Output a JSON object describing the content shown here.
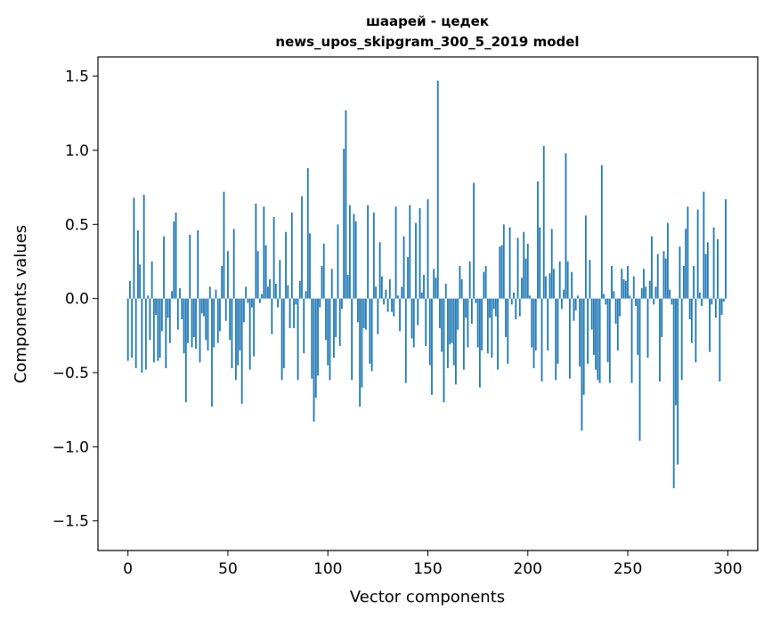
{
  "chart_data": {
    "type": "bar",
    "title_line1": "шаарей - цедек",
    "title_line2": "news_upos_skipgram_300_5_2019 model",
    "xlabel": "Vector components",
    "ylabel": "Components values",
    "xlim": [
      -15,
      315
    ],
    "ylim": [
      -1.7,
      1.63
    ],
    "xticks": [
      0,
      50,
      100,
      150,
      200,
      250,
      300
    ],
    "xtick_labels": [
      "0",
      "50",
      "100",
      "150",
      "200",
      "250",
      "300"
    ],
    "yticks": [
      -1.5,
      -1.0,
      -0.5,
      0.0,
      0.5,
      1.0,
      1.5
    ],
    "ytick_labels": [
      "−1.5",
      "−1.0",
      "−0.5",
      "0.0",
      "0.5",
      "1.0",
      "1.5"
    ],
    "bar_color": "#1f77b4",
    "grid": false,
    "x": [
      0,
      1,
      2,
      3,
      4,
      5,
      6,
      7,
      8,
      9,
      10,
      11,
      12,
      13,
      14,
      15,
      16,
      17,
      18,
      19,
      20,
      21,
      22,
      23,
      24,
      25,
      26,
      27,
      28,
      29,
      30,
      31,
      32,
      33,
      34,
      35,
      36,
      37,
      38,
      39,
      40,
      41,
      42,
      43,
      44,
      45,
      46,
      47,
      48,
      49,
      50,
      51,
      52,
      53,
      54,
      55,
      56,
      57,
      58,
      59,
      60,
      61,
      62,
      63,
      64,
      65,
      66,
      67,
      68,
      69,
      70,
      71,
      72,
      73,
      74,
      75,
      76,
      77,
      78,
      79,
      80,
      81,
      82,
      83,
      84,
      85,
      86,
      87,
      88,
      89,
      90,
      91,
      92,
      93,
      94,
      95,
      96,
      97,
      98,
      99,
      100,
      101,
      102,
      103,
      104,
      105,
      106,
      107,
      108,
      109,
      110,
      111,
      112,
      113,
      114,
      115,
      116,
      117,
      118,
      119,
      120,
      121,
      122,
      123,
      124,
      125,
      126,
      127,
      128,
      129,
      130,
      131,
      132,
      133,
      134,
      135,
      136,
      137,
      138,
      139,
      140,
      141,
      142,
      143,
      144,
      145,
      146,
      147,
      148,
      149,
      150,
      151,
      152,
      153,
      154,
      155,
      156,
      157,
      158,
      159,
      160,
      161,
      162,
      163,
      164,
      165,
      166,
      167,
      168,
      169,
      170,
      171,
      172,
      173,
      174,
      175,
      176,
      177,
      178,
      179,
      180,
      181,
      182,
      183,
      184,
      185,
      186,
      187,
      188,
      189,
      190,
      191,
      192,
      193,
      194,
      195,
      196,
      197,
      198,
      199,
      200,
      201,
      202,
      203,
      204,
      205,
      206,
      207,
      208,
      209,
      210,
      211,
      212,
      213,
      214,
      215,
      216,
      217,
      218,
      219,
      220,
      221,
      222,
      223,
      224,
      225,
      226,
      227,
      228,
      229,
      230,
      231,
      232,
      233,
      234,
      235,
      236,
      237,
      238,
      239,
      240,
      241,
      242,
      243,
      244,
      245,
      246,
      247,
      248,
      249,
      250,
      251,
      252,
      253,
      254,
      255,
      256,
      257,
      258,
      259,
      260,
      261,
      262,
      263,
      264,
      265,
      266,
      267,
      268,
      269,
      270,
      271,
      272,
      273,
      274,
      275,
      276,
      277,
      278,
      279,
      280,
      281,
      282,
      283,
      284,
      285,
      286,
      287,
      288,
      289,
      290,
      291,
      292,
      293,
      294,
      295,
      296,
      297,
      298,
      299
    ],
    "values": [
      -0.42,
      0.12,
      -0.4,
      0.68,
      -0.47,
      0.46,
      0.23,
      -0.5,
      0.7,
      -0.48,
      0.02,
      -0.28,
      0.25,
      -0.43,
      -0.11,
      -0.42,
      -0.4,
      -0.22,
      0.42,
      -0.47,
      -0.13,
      -0.3,
      0.05,
      0.52,
      0.58,
      -0.21,
      0.07,
      -0.14,
      -0.37,
      -0.7,
      -0.3,
      0.43,
      -0.33,
      -0.26,
      -0.34,
      0.46,
      -0.43,
      -0.1,
      -0.12,
      -0.28,
      -0.35,
      0.08,
      -0.73,
      -0.33,
      0.06,
      -0.3,
      -0.22,
      0.22,
      0.72,
      -0.15,
      0.32,
      -0.28,
      -0.47,
      0.47,
      -0.55,
      -0.45,
      -0.35,
      -0.71,
      -0.16,
      0.08,
      -0.03,
      -0.48,
      -0.06,
      -0.39,
      0.64,
      0.32,
      -0.03,
      0.03,
      0.62,
      0.36,
      0.08,
      0.13,
      -0.24,
      0.55,
      0.1,
      -0.06,
      0.26,
      -0.55,
      -0.47,
      0.45,
      0.09,
      -0.2,
      0.58,
      -0.2,
      -0.04,
      -0.55,
      0.12,
      0.69,
      -0.37,
      0.05,
      0.88,
      0.44,
      -0.54,
      -0.83,
      -0.67,
      -0.52,
      -0.06,
      0.22,
      0.37,
      -0.28,
      -0.45,
      -0.55,
      0.2,
      -0.4,
      -0.26,
      0.5,
      -0.32,
      -0.07,
      1.01,
      1.27,
      0.16,
      0.63,
      -0.55,
      0.57,
      0.52,
      -0.16,
      -0.73,
      -0.6,
      -0.2,
      -0.21,
      0.63,
      -0.44,
      -0.49,
      0.58,
      0.08,
      -0.24,
      0.38,
      0.15,
      -0.04,
      0.06,
      -0.09,
      0.13,
      -0.09,
      -0.12,
      0.62,
      0.02,
      -0.22,
      0.08,
      0.42,
      -0.57,
      0.28,
      0.63,
      -0.27,
      -0.33,
      0.51,
      -0.18,
      0.61,
      0.04,
      0.16,
      -0.32,
      0.67,
      -0.45,
      -0.65,
      0.2,
      0.14,
      1.47,
      -0.2,
      -0.36,
      -0.7,
      0.1,
      -0.47,
      -0.31,
      -0.3,
      -0.45,
      -0.58,
      -0.21,
      0.22,
      0.13,
      -0.48,
      -0.13,
      -0.33,
      0.25,
      -0.17,
      0.78,
      -0.03,
      -0.33,
      -0.6,
      -0.35,
      0.18,
      0.22,
      -0.37,
      -0.13,
      -0.4,
      -0.07,
      -0.12,
      -0.48,
      0.35,
      0.36,
      0.5,
      -0.26,
      -0.44,
      0.48,
      -0.04,
      0.04,
      -0.14,
      0.41,
      -0.12,
      0.14,
      0.45,
      0.27,
      0.37,
      0.02,
      -0.33,
      -0.47,
      -0.35,
      0.79,
      0.48,
      -0.56,
      1.03,
      0.15,
      -0.35,
      0.17,
      0.47,
      0.2,
      -0.55,
      -0.44,
      0.25,
      -0.07,
      0.06,
      0.98,
      0.25,
      -0.54,
      0.18,
      -0.15,
      -0.08,
      0.02,
      -0.46,
      -0.89,
      -0.65,
      0.56,
      -0.44,
      0.26,
      -0.21,
      -0.38,
      -0.48,
      -0.55,
      -0.57,
      0.9,
      0.03,
      -0.04,
      -0.43,
      -0.57,
      0.22,
      0.05,
      -0.17,
      -0.35,
      -0.12,
      0.2,
      0.13,
      0.12,
      0.22,
      0.02,
      -0.57,
      0.15,
      -0.05,
      -0.38,
      -0.96,
      0.07,
      0.2,
      0.08,
      -0.4,
      0.12,
      0.42,
      -0.04,
      0.08,
      0.3,
      -0.56,
      -0.26,
      0.32,
      0.27,
      0.51,
      0.06,
      -0.04,
      -1.28,
      -0.72,
      -1.12,
      0.35,
      -0.55,
      0.22,
      0.47,
      0.62,
      -0.14,
      -0.3,
      0.22,
      -0.43,
      0.6,
      0.04,
      -0.05,
      0.72,
      0.3,
      0.38,
      -0.36,
      -0.04,
      0.48,
      -0.13,
      0.4,
      -0.56,
      -0.11,
      -0.02,
      0.67
    ]
  }
}
